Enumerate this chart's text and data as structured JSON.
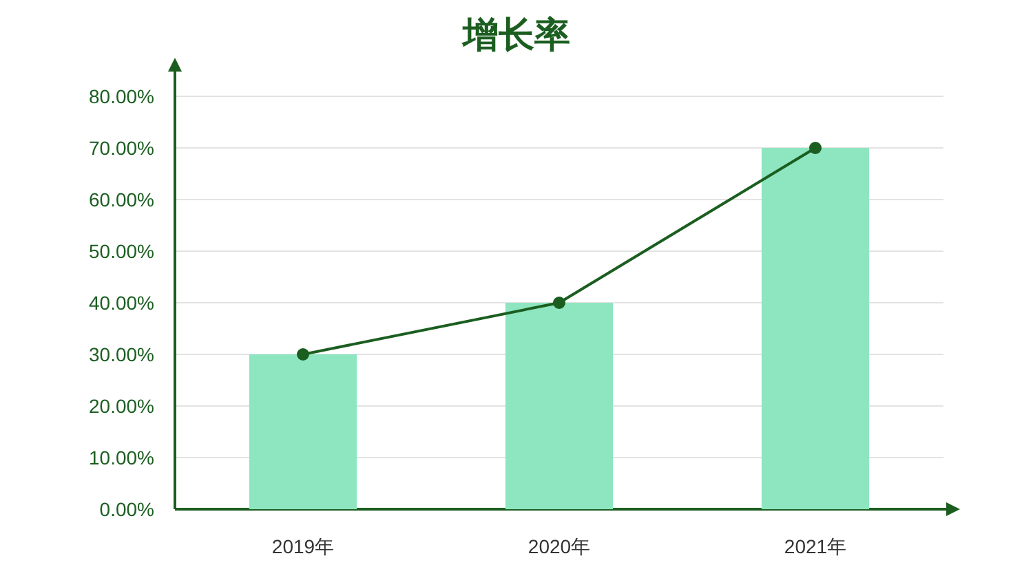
{
  "chart_data": {
    "type": "bar",
    "title": "增长率",
    "categories": [
      "2019年",
      "2020年",
      "2021年"
    ],
    "series": [
      {
        "color": "#8ee6c0",
        "values": [
          30,
          40,
          70
        ]
      },
      {
        "type": "line",
        "color": "#1b5e20",
        "values": [
          30,
          40,
          70
        ],
        "marker": "circle",
        "line_style": "solid"
      }
    ],
    "ylim": [
      0,
      80
    ],
    "yticks": [
      {
        "value": 0,
        "label": "0.00%"
      },
      {
        "value": 10,
        "label": "10.00%"
      },
      {
        "value": 20,
        "label": "20.00%"
      },
      {
        "value": 30,
        "label": "30.00%"
      },
      {
        "value": 40,
        "label": "40.00%"
      },
      {
        "value": 50,
        "label": "50.00%"
      },
      {
        "value": 60,
        "label": "60.00%"
      },
      {
        "value": 70,
        "label": "70.00%"
      },
      {
        "value": 80,
        "label": "80.00%"
      }
    ],
    "grid": "y"
  }
}
